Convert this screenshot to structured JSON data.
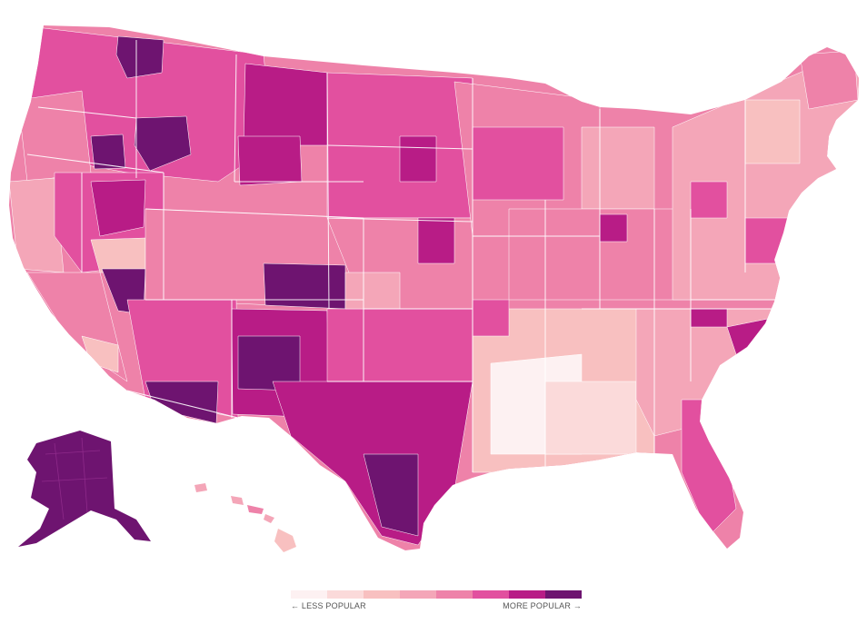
{
  "legend": {
    "less_label": "← LESS POPULAR",
    "more_label": "MORE POPULAR →",
    "colors": [
      "#fdf1f2",
      "#fbdada",
      "#f8c0c0",
      "#f4a6b8",
      "#ee82a9",
      "#e2509f",
      "#b81c86",
      "#6e1470"
    ]
  },
  "map": {
    "background": "#ffffff",
    "border_color": "#ffffff"
  }
}
